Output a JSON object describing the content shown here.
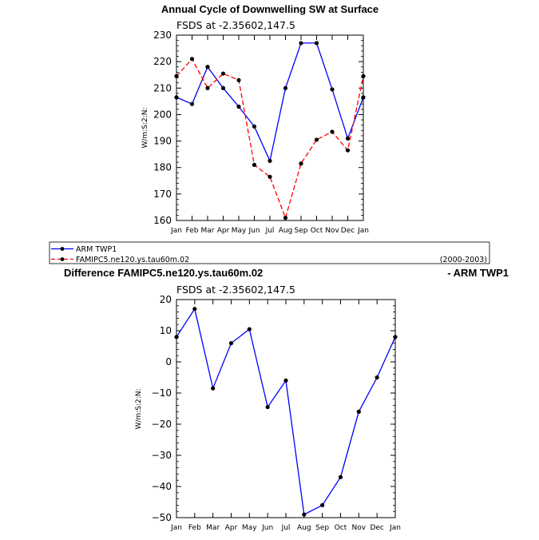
{
  "chart_data": [
    {
      "type": "line",
      "title": "Annual Cycle of Downwelling SW at Surface",
      "subtitle": "FSDS at -2.35602,147.5",
      "ylabel": "W/m:S:2:N:",
      "xlabel": "",
      "categories": [
        "Jan",
        "Feb",
        "Mar",
        "Apr",
        "May",
        "Jun",
        "Jul",
        "Aug",
        "Sep",
        "Oct",
        "Nov",
        "Dec",
        "Jan"
      ],
      "ylim": [
        160,
        230
      ],
      "yticks": [
        "160",
        "170",
        "180",
        "190",
        "200",
        "210",
        "220",
        "230"
      ],
      "series": [
        {
          "name": "ARM TWP1",
          "color": "#0000ff",
          "dash": "solid",
          "values": [
            206.5,
            204,
            218,
            210,
            203,
            195.5,
            182.5,
            210,
            227,
            227,
            209.5,
            191,
            206.5
          ]
        },
        {
          "name": "FAMIPC5.ne120.ys.tau60m.02",
          "color": "#ff0000",
          "dash": "dashed",
          "values": [
            214.5,
            221,
            210,
            215.5,
            213,
            181,
            176.5,
            161,
            181.5,
            190.5,
            193.5,
            186.5,
            214.5
          ]
        }
      ],
      "legend_note": "(2000-2003)"
    },
    {
      "type": "line",
      "title_left": "Difference FAMIPC5.ne120.ys.tau60m.02",
      "title_right": "- ARM TWP1",
      "subtitle": "FSDS at -2.35602,147.5",
      "ylabel": "W/m:S:2:N:",
      "xlabel": "",
      "categories": [
        "Jan",
        "Feb",
        "Mar",
        "Apr",
        "May",
        "Jun",
        "Jul",
        "Aug",
        "Sep",
        "Oct",
        "Nov",
        "Dec",
        "Jan"
      ],
      "ylim": [
        -50,
        20
      ],
      "yticks": [
        "20",
        "10",
        "0",
        "−10",
        "−20",
        "−30",
        "−40",
        "−50"
      ],
      "series": [
        {
          "name": "Difference",
          "color": "#0000ff",
          "dash": "solid",
          "values": [
            8,
            17,
            -8.5,
            6,
            10.5,
            -14.5,
            -6,
            -49,
            -46,
            -37,
            -16,
            -5,
            8
          ]
        }
      ]
    }
  ]
}
